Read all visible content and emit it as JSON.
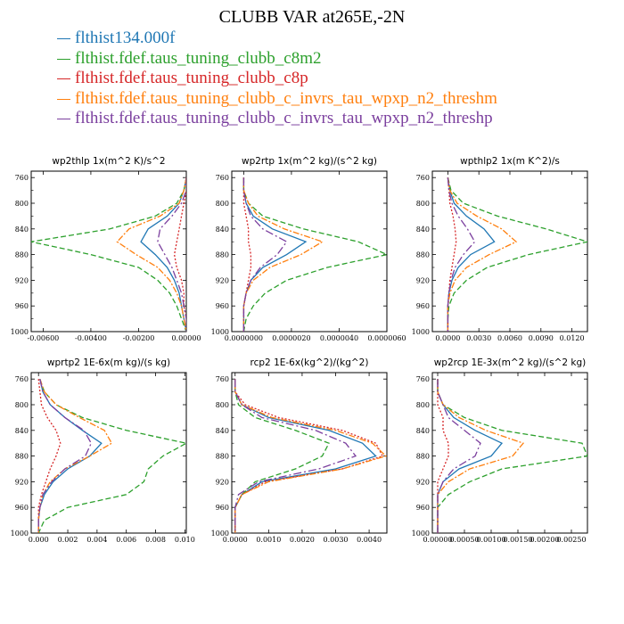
{
  "title": "CLUBB VAR at265E,-2N",
  "legend": [
    {
      "label": "flthist134.000f",
      "color": "#1f77b4"
    },
    {
      "label": "flthist.fdef.taus_tuning_clubb_c8m2",
      "color": "#2ca02c"
    },
    {
      "label": "flthist.fdef.taus_tuning_clubb_c8p",
      "color": "#d62728"
    },
    {
      "label": "flthist.fdef.taus_tuning_clubb_c_invrs_tau_wpxp_n2_threshm",
      "color": "#ff7f0e"
    },
    {
      "label": "flthist.fdef.taus_tuning_clubb_c_invrs_tau_wpxp_n2_threshp",
      "color": "#7b3f9e"
    }
  ],
  "chart_data": [
    {
      "type": "line",
      "title": "wp2thlp   1x(m^2 K)/s^2",
      "ylim": [
        1000,
        750
      ],
      "xlim": [
        -0.0065,
        0.0
      ],
      "xticks": [
        -0.006,
        -0.004,
        -0.002,
        0.0
      ],
      "xtick_labels": [
        "-0.00600",
        "-0.00400",
        "-0.00200",
        "0.00000"
      ],
      "yticks": [
        760,
        800,
        840,
        880,
        920,
        960,
        1000
      ],
      "y": [
        760,
        780,
        800,
        820,
        840,
        860,
        880,
        900,
        920,
        940,
        960,
        980,
        1000
      ],
      "series": [
        {
          "values": [
            0,
            -0.0001,
            -0.0003,
            -0.0008,
            -0.0016,
            -0.0019,
            -0.0013,
            -0.0008,
            -0.0005,
            -0.0003,
            -0.0002,
            -0.0001,
            0
          ]
        },
        {
          "values": [
            0,
            -0.0001,
            -0.0004,
            -0.0013,
            -0.0032,
            -0.0065,
            -0.004,
            -0.002,
            -0.0012,
            -0.0007,
            -0.0004,
            -0.0002,
            0
          ]
        },
        {
          "values": [
            0,
            0,
            -0.0001,
            -0.0002,
            -0.0003,
            -0.0004,
            -0.0005,
            -0.0004,
            -0.0002,
            -0.0001,
            -0.0001,
            0,
            0
          ]
        },
        {
          "values": [
            0,
            -0.0001,
            -0.0003,
            -0.0011,
            -0.0024,
            -0.0029,
            -0.0021,
            -0.0012,
            -0.0007,
            -0.0004,
            -0.0002,
            -0.0001,
            0
          ]
        },
        {
          "values": [
            0,
            0,
            -0.0002,
            -0.0006,
            -0.0011,
            -0.0012,
            -0.0009,
            -0.0006,
            -0.0004,
            -0.0002,
            -0.0001,
            0,
            0
          ]
        }
      ]
    },
    {
      "type": "line",
      "title": "wp2rtp   1x(m^2 kg)/(s^2 kg)",
      "ylim": [
        1000,
        750
      ],
      "xlim": [
        -5e-07,
        6e-06
      ],
      "xticks": [
        0,
        2e-06,
        4e-06,
        6e-06
      ],
      "xtick_labels": [
        "0.0000000",
        "0.0000020",
        "0.0000040",
        "0.0000060"
      ],
      "yticks": [
        760,
        800,
        840,
        880,
        920,
        960,
        1000
      ],
      "y": [
        760,
        780,
        800,
        820,
        840,
        860,
        880,
        900,
        920,
        940,
        960,
        980,
        1000
      ],
      "series": [
        {
          "values": [
            0,
            0,
            1e-07,
            4e-07,
            1.2e-06,
            2.6e-06,
            1.8e-06,
            8e-07,
            3e-07,
            1e-07,
            0,
            0,
            0
          ]
        },
        {
          "values": [
            0,
            0,
            2e-07,
            8e-07,
            2.5e-06,
            4.8e-06,
            6e-06,
            3.5e-06,
            1.8e-06,
            9e-07,
            4e-07,
            1e-07,
            0
          ]
        },
        {
          "values": [
            0,
            0,
            0,
            1e-07,
            2e-07,
            2e-07,
            3e-07,
            3e-07,
            2e-07,
            1e-07,
            0,
            0,
            0
          ]
        },
        {
          "values": [
            0,
            0,
            2e-07,
            6e-07,
            1.7e-06,
            3.3e-06,
            2.4e-06,
            1.1e-06,
            4e-07,
            1e-07,
            0,
            0,
            0
          ]
        },
        {
          "values": [
            0,
            0,
            1e-07,
            3e-07,
            8e-07,
            1.8e-06,
            1.4e-06,
            7e-07,
            3e-07,
            1e-07,
            0,
            0,
            0
          ]
        }
      ]
    },
    {
      "type": "line",
      "title": "wpthlp2   1x(m K^2)/s",
      "ylim": [
        1000,
        750
      ],
      "xlim": [
        -0.0015,
        0.0135
      ],
      "xticks": [
        0,
        0.003,
        0.006,
        0.009,
        0.012
      ],
      "xtick_labels": [
        "0.0000",
        "0.0030",
        "0.0060",
        "0.0090",
        "0.0120"
      ],
      "yticks": [
        760,
        800,
        840,
        880,
        920,
        960,
        1000
      ],
      "y": [
        760,
        780,
        800,
        820,
        840,
        860,
        880,
        900,
        920,
        940,
        960,
        980,
        1000
      ],
      "series": [
        {
          "values": [
            0,
            0.0002,
            0.0006,
            0.0018,
            0.0035,
            0.0045,
            0.0022,
            0.001,
            0.0004,
            0.0001,
            0,
            0,
            0
          ]
        },
        {
          "values": [
            0,
            0.0003,
            0.0015,
            0.0048,
            0.0095,
            0.0135,
            0.0078,
            0.0038,
            0.0018,
            0.0006,
            0.0001,
            0,
            0
          ]
        },
        {
          "values": [
            0,
            0.0001,
            0.0002,
            0.0005,
            0.0007,
            0.0008,
            0.0006,
            0.0004,
            0.0002,
            0.0001,
            0,
            0,
            0
          ]
        },
        {
          "values": [
            0,
            0.0002,
            0.0009,
            0.0028,
            0.0052,
            0.0066,
            0.004,
            0.0018,
            0.0007,
            0.0002,
            0,
            0,
            0
          ]
        },
        {
          "values": [
            0,
            0.0001,
            0.0004,
            0.001,
            0.0019,
            0.0026,
            0.0015,
            0.0007,
            0.0003,
            0.0001,
            0,
            0,
            0
          ]
        }
      ]
    },
    {
      "type": "line",
      "title": "wprtp2   1E-6x(m kg)/(s kg)",
      "ylim": [
        1000,
        750
      ],
      "xlim": [
        -0.0005,
        0.0101
      ],
      "xticks": [
        0,
        0.002,
        0.004,
        0.006,
        0.008,
        0.01
      ],
      "xtick_labels": [
        "0.000",
        "0.002",
        "0.004",
        "0.006",
        "0.008",
        "0.010"
      ],
      "yticks": [
        760,
        800,
        840,
        880,
        920,
        960,
        1000
      ],
      "y": [
        760,
        780,
        800,
        820,
        840,
        860,
        880,
        900,
        920,
        940,
        960,
        980,
        1000
      ],
      "series": [
        {
          "values": [
            0.0001,
            0.0003,
            0.0008,
            0.0018,
            0.003,
            0.0043,
            0.0035,
            0.002,
            0.001,
            0.0004,
            0.0001,
            0,
            0
          ]
        },
        {
          "values": [
            0.0001,
            0.0004,
            0.0012,
            0.003,
            0.006,
            0.0101,
            0.0085,
            0.0075,
            0.0072,
            0.006,
            0.002,
            0.0004,
            0
          ]
        },
        {
          "values": [
            0,
            0.0001,
            0.0002,
            0.0006,
            0.0012,
            0.0015,
            0.0012,
            0.0008,
            0.0005,
            0.0002,
            0,
            0,
            0
          ]
        },
        {
          "values": [
            0.0001,
            0.0004,
            0.0012,
            0.0028,
            0.0045,
            0.005,
            0.0035,
            0.0018,
            0.0008,
            0.0003,
            0.0001,
            0,
            0
          ]
        },
        {
          "values": [
            0.0001,
            0.0003,
            0.0008,
            0.0018,
            0.0031,
            0.0036,
            0.0032,
            0.0018,
            0.0009,
            0.0003,
            0.0001,
            0,
            0
          ]
        }
      ]
    },
    {
      "type": "line",
      "title": "rcp2   1E-6x(kg^2)/(kg^2)",
      "ylim": [
        1000,
        750
      ],
      "xlim": [
        -0.0001,
        0.00453
      ],
      "xticks": [
        0,
        0.001,
        0.002,
        0.003,
        0.004
      ],
      "xtick_labels": [
        "0.0000",
        "0.0010",
        "0.0020",
        "0.0030",
        "0.0040"
      ],
      "yticks": [
        760,
        800,
        840,
        880,
        920,
        960,
        1000
      ],
      "y": [
        760,
        780,
        800,
        820,
        840,
        860,
        880,
        900,
        920,
        940,
        960,
        980,
        1000
      ],
      "series": [
        {
          "values": [
            0,
            0,
            0.0002,
            0.001,
            0.0028,
            0.0038,
            0.0042,
            0.003,
            0.0008,
            0.0002,
            0,
            0,
            0
          ]
        },
        {
          "values": [
            0,
            0,
            0.0001,
            0.0006,
            0.0018,
            0.0028,
            0.0026,
            0.0018,
            0.0006,
            0.0002,
            0,
            0,
            0
          ]
        },
        {
          "values": [
            0,
            0,
            0.0003,
            0.0013,
            0.0032,
            0.0042,
            0.0044,
            0.0032,
            0.0009,
            0.0002,
            0,
            0,
            0
          ]
        },
        {
          "values": [
            0,
            0,
            0.0002,
            0.0011,
            0.003,
            0.0041,
            0.0045,
            0.0032,
            0.001,
            0.0002,
            0,
            0,
            0
          ]
        },
        {
          "values": [
            0,
            0,
            0.0002,
            0.0008,
            0.0024,
            0.0033,
            0.0036,
            0.0025,
            0.0007,
            0.0001,
            0,
            0,
            0
          ]
        }
      ]
    },
    {
      "type": "line",
      "title": "wp2rcp   1E-3x(m^2 kg)/(s^2 kg)",
      "ylim": [
        1000,
        750
      ],
      "xlim": [
        -0.0001,
        0.0028
      ],
      "xticks": [
        0,
        0.0005,
        0.001,
        0.0015,
        0.002,
        0.0025
      ],
      "xtick_labels": [
        "0.00000",
        "0.00050",
        "0.00100",
        "0.00150",
        "0.00200",
        "0.00250"
      ],
      "yticks": [
        760,
        800,
        840,
        880,
        920,
        960,
        1000
      ],
      "y": [
        760,
        780,
        800,
        820,
        840,
        860,
        880,
        900,
        920,
        940,
        960,
        980,
        1000
      ],
      "series": [
        {
          "values": [
            0,
            0,
            0.0001,
            0.0003,
            0.0007,
            0.0012,
            0.001,
            0.0004,
            0.0001,
            0,
            0,
            0,
            0
          ]
        },
        {
          "values": [
            0,
            0,
            0.0001,
            0.0005,
            0.0012,
            0.0027,
            0.0028,
            0.0012,
            0.0006,
            0.0002,
            0,
            0,
            0
          ]
        },
        {
          "values": [
            0,
            0,
            0,
            0.0001,
            0.0001,
            0.0002,
            0.0002,
            0.0001,
            0,
            0,
            0,
            0,
            0
          ]
        },
        {
          "values": [
            0,
            0,
            0.0001,
            0.0004,
            0.0009,
            0.0016,
            0.0014,
            0.0006,
            0.0002,
            0,
            0,
            0,
            0
          ]
        },
        {
          "values": [
            0,
            0,
            0.0001,
            0.0002,
            0.0005,
            0.0008,
            0.0007,
            0.0003,
            0.0001,
            0,
            0,
            0,
            0
          ]
        }
      ]
    }
  ]
}
